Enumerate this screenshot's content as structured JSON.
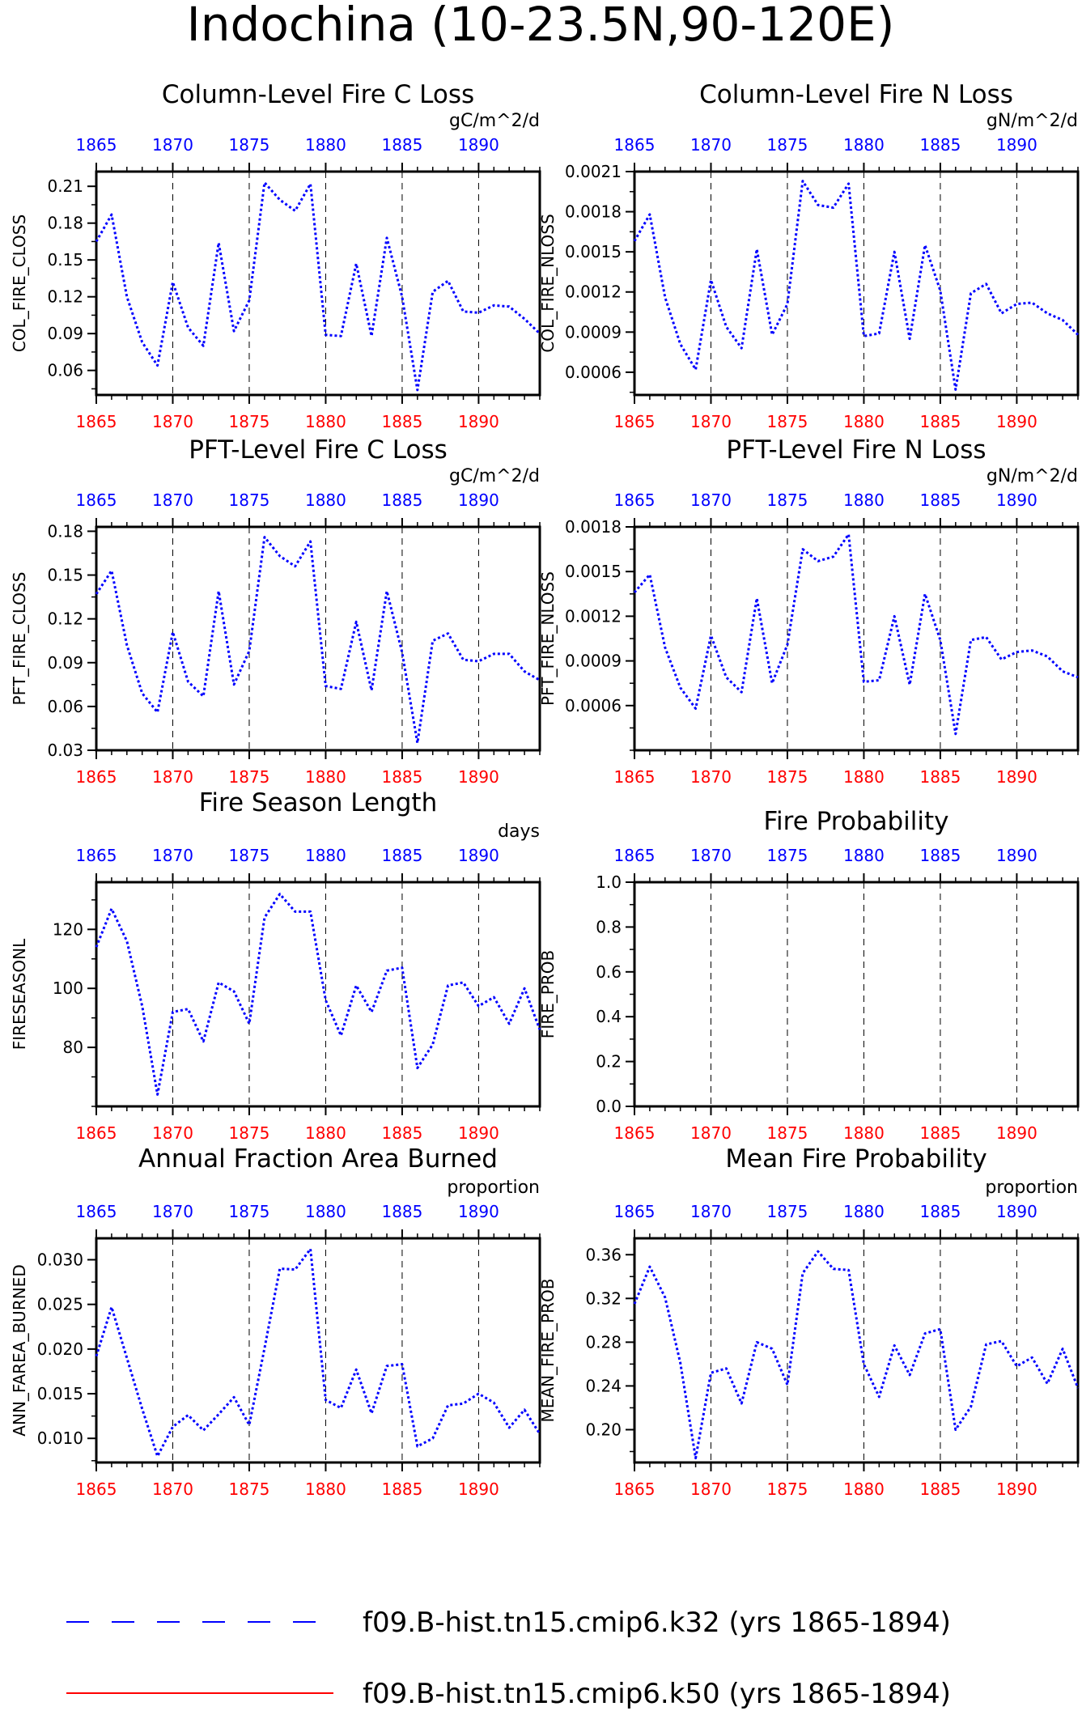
{
  "title": "Indochina (10-23.5N,90-120E)",
  "legend": [
    {
      "label": "f09.B-hist.tn15.cmip6.k32 (yrs 1865-1894)",
      "color": "#0000ff",
      "style": "dashed"
    },
    {
      "label": "f09.B-hist.tn15.cmip6.k50 (yrs 1865-1894)",
      "color": "#ff0000",
      "style": "solid"
    }
  ],
  "colors": {
    "top_axis": "#0000ff",
    "bottom_axis": "#ff0000",
    "series": "#0000ff"
  },
  "chart_data": [
    {
      "type": "line",
      "title": "Column-Level Fire C Loss",
      "units": "gC/m^2/d",
      "ylabel": "COL_FIRE_CLOSS",
      "xlim": [
        1865,
        1894
      ],
      "ylim": [
        0.04,
        0.222
      ],
      "yticks": [
        0.06,
        0.09,
        0.12,
        0.15,
        0.18,
        0.21
      ],
      "ytick_labels": [
        "0.06",
        "0.09",
        "0.12",
        "0.15",
        "0.18",
        "0.21"
      ],
      "xticks": [
        1865,
        1870,
        1875,
        1880,
        1885,
        1890
      ],
      "x": [
        1865,
        1866,
        1867,
        1868,
        1869,
        1870,
        1871,
        1872,
        1873,
        1874,
        1875,
        1876,
        1877,
        1878,
        1879,
        1880,
        1881,
        1882,
        1883,
        1884,
        1885,
        1886,
        1887,
        1888,
        1889,
        1890,
        1891,
        1892,
        1893,
        1894
      ],
      "series": [
        {
          "values": [
            0.165,
            0.187,
            0.12,
            0.083,
            0.064,
            0.132,
            0.095,
            0.08,
            0.164,
            0.092,
            0.117,
            0.213,
            0.199,
            0.19,
            0.212,
            0.089,
            0.088,
            0.147,
            0.088,
            0.168,
            0.12,
            0.044,
            0.124,
            0.133,
            0.108,
            0.107,
            0.113,
            0.112,
            0.102,
            0.09
          ]
        }
      ]
    },
    {
      "type": "line",
      "title": "Column-Level Fire N Loss",
      "units": "gN/m^2/d",
      "ylabel": "COL_FIRE_NLOSS",
      "xlim": [
        1865,
        1894
      ],
      "ylim": [
        0.00043,
        0.0021
      ],
      "yticks": [
        0.0006,
        0.0009,
        0.0012,
        0.0015,
        0.0018,
        0.0021
      ],
      "ytick_labels": [
        "0.0006",
        "0.0009",
        "0.0012",
        "0.0015",
        "0.0018",
        "0.0021"
      ],
      "xticks": [
        1865,
        1870,
        1875,
        1880,
        1885,
        1890
      ],
      "x": [
        1865,
        1866,
        1867,
        1868,
        1869,
        1870,
        1871,
        1872,
        1873,
        1874,
        1875,
        1876,
        1877,
        1878,
        1879,
        1880,
        1881,
        1882,
        1883,
        1884,
        1885,
        1886,
        1887,
        1888,
        1889,
        1890,
        1891,
        1892,
        1893,
        1894
      ],
      "series": [
        {
          "values": [
            0.00158,
            0.00178,
            0.00116,
            0.00081,
            0.00062,
            0.00129,
            0.00094,
            0.00078,
            0.00152,
            0.00088,
            0.00111,
            0.00203,
            0.00185,
            0.00183,
            0.00201,
            0.00087,
            0.00089,
            0.0015,
            0.00085,
            0.00155,
            0.00121,
            0.00047,
            0.00119,
            0.00126,
            0.00104,
            0.00111,
            0.00112,
            0.00104,
            0.00099,
            0.00088
          ]
        }
      ]
    },
    {
      "type": "line",
      "title": "PFT-Level Fire C Loss",
      "units": "gC/m^2/d",
      "ylabel": "PFT_FIRE_CLOSS",
      "xlim": [
        1865,
        1894
      ],
      "ylim": [
        0.03,
        0.183
      ],
      "yticks": [
        0.03,
        0.06,
        0.09,
        0.12,
        0.15,
        0.18
      ],
      "ytick_labels": [
        "0.03",
        "0.06",
        "0.09",
        "0.12",
        "0.15",
        "0.18"
      ],
      "xticks": [
        1865,
        1870,
        1875,
        1880,
        1885,
        1890
      ],
      "x": [
        1865,
        1866,
        1867,
        1868,
        1869,
        1870,
        1871,
        1872,
        1873,
        1874,
        1875,
        1876,
        1877,
        1878,
        1879,
        1880,
        1881,
        1882,
        1883,
        1884,
        1885,
        1886,
        1887,
        1888,
        1889,
        1890,
        1891,
        1892,
        1893,
        1894
      ],
      "series": [
        {
          "values": [
            0.137,
            0.153,
            0.102,
            0.069,
            0.056,
            0.111,
            0.077,
            0.067,
            0.139,
            0.075,
            0.098,
            0.176,
            0.163,
            0.156,
            0.173,
            0.074,
            0.072,
            0.118,
            0.071,
            0.139,
            0.097,
            0.035,
            0.105,
            0.11,
            0.092,
            0.091,
            0.096,
            0.096,
            0.084,
            0.078
          ]
        }
      ]
    },
    {
      "type": "line",
      "title": "PFT-Level Fire N Loss",
      "units": "gN/m^2/d",
      "ylabel": "PFT_FIRE_NLOSS",
      "xlim": [
        1865,
        1894
      ],
      "ylim": [
        0.0003,
        0.0018
      ],
      "yticks": [
        0.0006,
        0.0009,
        0.0012,
        0.0015,
        0.0018
      ],
      "ytick_labels": [
        "0.0006",
        "0.0009",
        "0.0012",
        "0.0015",
        "0.0018"
      ],
      "xticks": [
        1865,
        1870,
        1875,
        1880,
        1885,
        1890
      ],
      "x": [
        1865,
        1866,
        1867,
        1868,
        1869,
        1870,
        1871,
        1872,
        1873,
        1874,
        1875,
        1876,
        1877,
        1878,
        1879,
        1880,
        1881,
        1882,
        1883,
        1884,
        1885,
        1886,
        1887,
        1888,
        1889,
        1890,
        1891,
        1892,
        1893,
        1894
      ],
      "series": [
        {
          "values": [
            0.00136,
            0.00148,
            0.00099,
            0.00072,
            0.00058,
            0.00107,
            0.00079,
            0.00069,
            0.00132,
            0.00075,
            0.00101,
            0.00165,
            0.00157,
            0.0016,
            0.00175,
            0.00076,
            0.00077,
            0.0012,
            0.00074,
            0.00135,
            0.00104,
            0.00041,
            0.00104,
            0.00106,
            0.00091,
            0.00096,
            0.00097,
            0.00093,
            0.00083,
            0.00079
          ]
        }
      ]
    },
    {
      "type": "line",
      "title": "Fire Season Length",
      "units": "days",
      "ylabel": "FIRESEASONL",
      "xlim": [
        1865,
        1894
      ],
      "ylim": [
        60,
        136
      ],
      "yticks": [
        80,
        100,
        120
      ],
      "ytick_labels": [
        "80",
        "100",
        "120"
      ],
      "xticks": [
        1865,
        1870,
        1875,
        1880,
        1885,
        1890
      ],
      "x": [
        1865,
        1866,
        1867,
        1868,
        1869,
        1870,
        1871,
        1872,
        1873,
        1874,
        1875,
        1876,
        1877,
        1878,
        1879,
        1880,
        1881,
        1882,
        1883,
        1884,
        1885,
        1886,
        1887,
        1888,
        1889,
        1890,
        1891,
        1892,
        1893,
        1894
      ],
      "series": [
        {
          "values": [
            114,
            127,
            116,
            94,
            64,
            92,
            93,
            82,
            102,
            99,
            88,
            124,
            132,
            126,
            126,
            96,
            84,
            101,
            92,
            106,
            107,
            73,
            81,
            101,
            102,
            94,
            97,
            88,
            100,
            86
          ]
        }
      ]
    },
    {
      "type": "line",
      "title": "Fire Probability",
      "units": "",
      "ylabel": "FIRE_PROB",
      "xlim": [
        1865,
        1894
      ],
      "ylim": [
        0,
        1
      ],
      "yticks": [
        0,
        0.2,
        0.4,
        0.6,
        0.8,
        1.0
      ],
      "ytick_labels": [
        "0.0",
        "0.2",
        "0.4",
        "0.6",
        "0.8",
        "1.0"
      ],
      "xticks": [
        1865,
        1870,
        1875,
        1880,
        1885,
        1890
      ],
      "x": [],
      "series": []
    },
    {
      "type": "line",
      "title": "Annual Fraction Area Burned",
      "units": "proportion",
      "ylabel": "ANN_FAREA_BURNED",
      "xlim": [
        1865,
        1894
      ],
      "ylim": [
        0.0073,
        0.0324
      ],
      "yticks": [
        0.01,
        0.015,
        0.02,
        0.025,
        0.03
      ],
      "ytick_labels": [
        "0.010",
        "0.015",
        "0.020",
        "0.025",
        "0.030"
      ],
      "xticks": [
        1865,
        1870,
        1875,
        1880,
        1885,
        1890
      ],
      "x": [
        1865,
        1866,
        1867,
        1868,
        1869,
        1870,
        1871,
        1872,
        1873,
        1874,
        1875,
        1876,
        1877,
        1878,
        1879,
        1880,
        1881,
        1882,
        1883,
        1884,
        1885,
        1886,
        1887,
        1888,
        1889,
        1890,
        1891,
        1892,
        1893,
        1894
      ],
      "series": [
        {
          "values": [
            0.0192,
            0.0247,
            0.019,
            0.0133,
            0.008,
            0.0113,
            0.0126,
            0.0109,
            0.0127,
            0.0146,
            0.0115,
            0.0201,
            0.029,
            0.0289,
            0.0312,
            0.0143,
            0.0134,
            0.0177,
            0.0128,
            0.0181,
            0.0183,
            0.0091,
            0.01,
            0.0137,
            0.0139,
            0.015,
            0.014,
            0.0112,
            0.0132,
            0.0105
          ]
        }
      ]
    },
    {
      "type": "line",
      "title": "Mean Fire Probability",
      "units": "proportion",
      "ylabel": "MEAN_FIRE_PROB",
      "xlim": [
        1865,
        1894
      ],
      "ylim": [
        0.17,
        0.375
      ],
      "yticks": [
        0.2,
        0.24,
        0.28,
        0.32,
        0.36
      ],
      "ytick_labels": [
        "0.20",
        "0.24",
        "0.28",
        "0.32",
        "0.36"
      ],
      "xticks": [
        1865,
        1870,
        1875,
        1880,
        1885,
        1890
      ],
      "x": [
        1865,
        1866,
        1867,
        1868,
        1869,
        1870,
        1871,
        1872,
        1873,
        1874,
        1875,
        1876,
        1877,
        1878,
        1879,
        1880,
        1881,
        1882,
        1883,
        1884,
        1885,
        1886,
        1887,
        1888,
        1889,
        1890,
        1891,
        1892,
        1893,
        1894
      ],
      "series": [
        {
          "values": [
            0.315,
            0.349,
            0.321,
            0.261,
            0.174,
            0.252,
            0.256,
            0.224,
            0.28,
            0.274,
            0.241,
            0.343,
            0.363,
            0.347,
            0.346,
            0.26,
            0.23,
            0.277,
            0.25,
            0.288,
            0.292,
            0.2,
            0.221,
            0.278,
            0.281,
            0.258,
            0.266,
            0.242,
            0.274,
            0.238
          ]
        }
      ]
    }
  ]
}
